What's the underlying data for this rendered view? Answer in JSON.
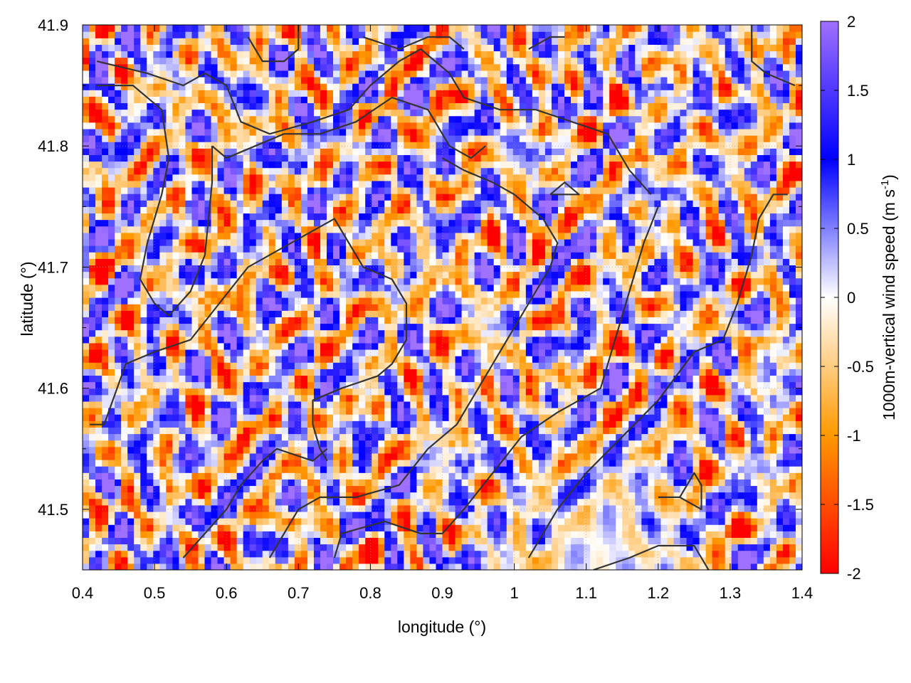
{
  "chart_data": {
    "type": "heatmap",
    "title": "",
    "xlabel": "longitude (°)",
    "ylabel": "latitude (°)",
    "xlim": [
      0.4,
      1.4
    ],
    "ylim": [
      41.45,
      41.9
    ],
    "x_ticks": [
      "0.4",
      "0.5",
      "0.6",
      "0.7",
      "0.8",
      "0.9",
      "1",
      "1.1",
      "1.2",
      "1.3",
      "1.4"
    ],
    "y_ticks": [
      "41.5",
      "41.6",
      "41.7",
      "41.8",
      "41.9"
    ],
    "grid": true,
    "colorbar": {
      "label_main": "1000m-vertical wind speed (m s",
      "label_sup": "-1",
      "label_end": ")",
      "range": [
        -2,
        2
      ],
      "ticks": [
        "2",
        "1.5",
        "1",
        "0.5",
        "0",
        "-0.5",
        "-1",
        "-1.5",
        "-2"
      ],
      "stops": [
        {
          "value": -2,
          "color": "#ff0000"
        },
        {
          "value": -1,
          "color": "#ff9900"
        },
        {
          "value": 0,
          "color": "#ffffff"
        },
        {
          "value": 1,
          "color": "#0000ff"
        },
        {
          "value": 2,
          "color": "#a070ff"
        }
      ]
    },
    "description_pattern": "small-scale alternating updraft/downdraft cells over the whole domain; weak values in the lower-right (approx. lon 0.95–1.3, lat 41.45–41.58)",
    "contours": [
      [
        [
          0.42,
          41.87
        ],
        [
          0.49,
          41.86
        ],
        [
          0.54,
          41.85
        ],
        [
          0.57,
          41.86
        ],
        [
          0.6,
          41.85
        ],
        [
          0.62,
          41.82
        ],
        [
          0.66,
          41.81
        ],
        [
          0.72,
          41.82
        ],
        [
          0.77,
          41.83
        ],
        [
          0.8,
          41.85
        ],
        [
          0.84,
          41.87
        ],
        [
          0.87,
          41.88
        ],
        [
          0.91,
          41.86
        ],
        [
          0.93,
          41.84
        ],
        [
          0.98,
          41.83
        ],
        [
          1.03,
          41.83
        ],
        [
          1.08,
          41.82
        ],
        [
          1.13,
          41.81
        ],
        [
          1.16,
          41.78
        ],
        [
          1.19,
          41.76
        ]
      ],
      [
        [
          0.42,
          41.85
        ],
        [
          0.47,
          41.85
        ],
        [
          0.51,
          41.83
        ],
        [
          0.52,
          41.79
        ],
        [
          0.51,
          41.76
        ],
        [
          0.49,
          41.72
        ],
        [
          0.48,
          41.69
        ],
        [
          0.5,
          41.67
        ],
        [
          0.52,
          41.66
        ],
        [
          0.55,
          41.68
        ],
        [
          0.57,
          41.71
        ],
        [
          0.58,
          41.77
        ],
        [
          0.58,
          41.8
        ]
      ],
      [
        [
          0.58,
          41.8
        ],
        [
          0.6,
          41.79
        ],
        [
          0.64,
          41.8
        ],
        [
          0.68,
          41.81
        ],
        [
          0.7,
          41.81
        ],
        [
          0.73,
          41.81
        ],
        [
          0.78,
          41.82
        ],
        [
          0.83,
          41.84
        ],
        [
          0.88,
          41.83
        ],
        [
          0.91,
          41.8
        ],
        [
          0.94,
          41.79
        ],
        [
          0.96,
          41.8
        ]
      ],
      [
        [
          0.41,
          41.57
        ],
        [
          0.43,
          41.57
        ],
        [
          0.46,
          41.62
        ],
        [
          0.5,
          41.63
        ],
        [
          0.55,
          41.64
        ],
        [
          0.59,
          41.67
        ],
        [
          0.63,
          41.7
        ],
        [
          0.66,
          41.71
        ],
        [
          0.69,
          41.72
        ],
        [
          0.72,
          41.73
        ],
        [
          0.75,
          41.74
        ],
        [
          0.77,
          41.72
        ],
        [
          0.79,
          41.7
        ],
        [
          0.83,
          41.69
        ],
        [
          0.85,
          41.67
        ],
        [
          0.85,
          41.64
        ],
        [
          0.83,
          41.62
        ],
        [
          0.81,
          41.61
        ],
        [
          0.76,
          41.6
        ],
        [
          0.72,
          41.59
        ],
        [
          0.72,
          41.57
        ],
        [
          0.73,
          41.55
        ],
        [
          0.74,
          41.54
        ]
      ],
      [
        [
          0.54,
          41.46
        ],
        [
          0.57,
          41.48
        ],
        [
          0.6,
          41.5
        ],
        [
          0.62,
          41.52
        ],
        [
          0.65,
          41.54
        ],
        [
          0.67,
          41.55
        ],
        [
          0.72,
          41.54
        ],
        [
          0.74,
          41.55
        ]
      ],
      [
        [
          0.66,
          41.46
        ],
        [
          0.7,
          41.5
        ],
        [
          0.73,
          41.51
        ],
        [
          0.78,
          41.51
        ],
        [
          0.84,
          41.52
        ],
        [
          0.88,
          41.55
        ],
        [
          0.92,
          41.57
        ],
        [
          0.95,
          41.6
        ],
        [
          0.98,
          41.63
        ],
        [
          1.01,
          41.66
        ],
        [
          1.03,
          41.68
        ],
        [
          1.05,
          41.7
        ],
        [
          1.06,
          41.72
        ],
        [
          1.04,
          41.74
        ],
        [
          1.0,
          41.76
        ],
        [
          0.97,
          41.77
        ],
        [
          0.93,
          41.78
        ],
        [
          0.9,
          41.79
        ]
      ],
      [
        [
          0.75,
          41.46
        ],
        [
          0.76,
          41.48
        ],
        [
          0.82,
          41.49
        ],
        [
          0.87,
          41.48
        ],
        [
          0.9,
          41.48
        ],
        [
          0.93,
          41.5
        ],
        [
          0.97,
          41.53
        ],
        [
          1.01,
          41.56
        ],
        [
          1.06,
          41.58
        ],
        [
          1.12,
          41.6
        ],
        [
          1.15,
          41.66
        ],
        [
          1.18,
          41.72
        ],
        [
          1.2,
          41.75
        ]
      ],
      [
        [
          1.02,
          41.46
        ],
        [
          1.06,
          41.5
        ],
        [
          1.1,
          41.53
        ],
        [
          1.15,
          41.56
        ],
        [
          1.2,
          41.59
        ],
        [
          1.25,
          41.63
        ],
        [
          1.29,
          41.64
        ],
        [
          1.31,
          41.67
        ],
        [
          1.33,
          41.71
        ],
        [
          1.34,
          41.74
        ],
        [
          1.36,
          41.76
        ],
        [
          1.38,
          41.76
        ]
      ],
      [
        [
          1.11,
          41.45
        ],
        [
          1.16,
          41.46
        ],
        [
          1.2,
          41.47
        ],
        [
          1.25,
          41.47
        ],
        [
          1.27,
          41.45
        ]
      ],
      [
        [
          1.2,
          41.51
        ],
        [
          1.23,
          41.51
        ],
        [
          1.26,
          41.5
        ],
        [
          1.26,
          41.52
        ],
        [
          1.25,
          41.53
        ],
        [
          1.23,
          41.51
        ]
      ],
      [
        [
          1.05,
          41.76
        ],
        [
          1.07,
          41.76
        ],
        [
          1.09,
          41.76
        ],
        [
          1.07,
          41.77
        ],
        [
          1.05,
          41.76
        ]
      ],
      [
        [
          0.63,
          41.89
        ],
        [
          0.65,
          41.87
        ],
        [
          0.68,
          41.87
        ],
        [
          0.7,
          41.88
        ],
        [
          0.7,
          41.9
        ]
      ],
      [
        [
          0.79,
          41.89
        ],
        [
          0.84,
          41.88
        ],
        [
          0.88,
          41.89
        ],
        [
          0.91,
          41.89
        ],
        [
          0.93,
          41.88
        ]
      ],
      [
        [
          1.02,
          41.88
        ],
        [
          1.05,
          41.89
        ],
        [
          1.07,
          41.89
        ]
      ],
      [
        [
          1.33,
          41.9
        ],
        [
          1.33,
          41.87
        ],
        [
          1.35,
          41.86
        ],
        [
          1.39,
          41.85
        ]
      ]
    ]
  }
}
